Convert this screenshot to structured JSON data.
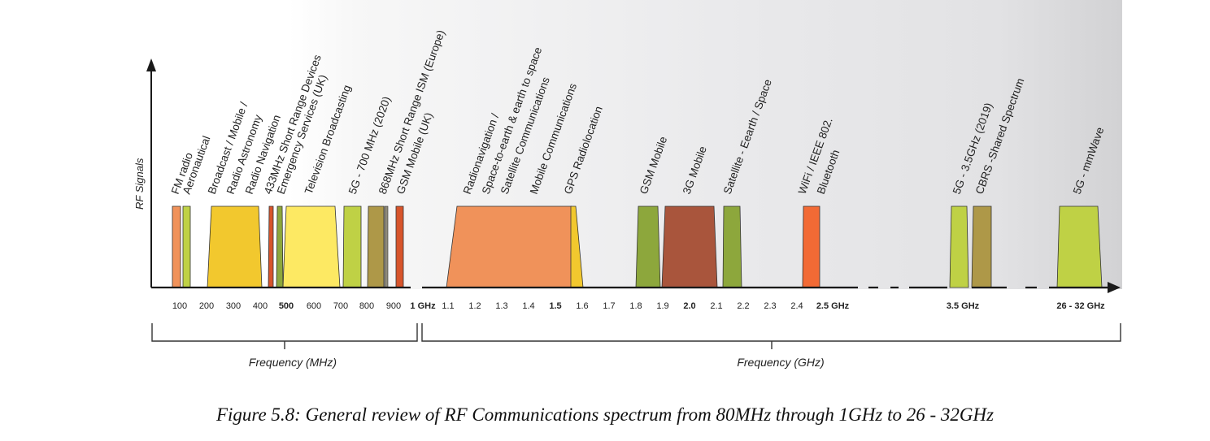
{
  "y_axis_label": "RF Signals",
  "colors": {
    "light_orange": "#F0925A",
    "yellow_green": "#BFD145",
    "gold": "#F2C82E",
    "orange_red": "#D7542B",
    "olive_green": "#8DA73C",
    "bright_yellow": "#FDE963",
    "khaki": "#AE9848",
    "brown": "#A9553C",
    "bright_orange": "#F26A35",
    "axis": "#1a1a1a"
  },
  "bands": [
    {
      "label": "FM radio",
      "color": "light_orange"
    },
    {
      "label": "Aeronautical",
      "color": "yellow_green"
    },
    {
      "label": "Broadcast / Mobile /",
      "color": "gold"
    },
    {
      "label": "Radio Astronomy",
      "color": null
    },
    {
      "label": "Radio Navigation",
      "color": "orange_red"
    },
    {
      "label": "433MHz Short Range Devices",
      "color": "olive_green"
    },
    {
      "label": "Emergency Services (UK)",
      "color": null
    },
    {
      "label": "Television Broadcasting",
      "color": "bright_yellow"
    },
    {
      "label": "5G - 700 MHz (2020)",
      "color": "yellow_green"
    },
    {
      "label": "868MHz Short Range ISM (Europe)",
      "color": "khaki"
    },
    {
      "label": "GSM Mobile (UK)",
      "color": "orange_red"
    },
    {
      "label": "Radionavigation /",
      "color": "light_orange"
    },
    {
      "label": "Space-to-earth & earth to space",
      "color": null
    },
    {
      "label": "Satellite Communications",
      "color": null
    },
    {
      "label": "Mobile Communications",
      "color": null
    },
    {
      "label": "GPS Radiolocation",
      "color": "gold"
    },
    {
      "label": "GSM Mobile",
      "color": "olive_green"
    },
    {
      "label": "3G Mobile",
      "color": "brown"
    },
    {
      "label": "Satellite - Eearth / Space",
      "color": "olive_green"
    },
    {
      "label": "WiFi / IEEE 802.",
      "color": "bright_orange"
    },
    {
      "label": "Bluetooth",
      "color": null
    },
    {
      "label": "5G - 3.5GHz (2019)",
      "color": "yellow_green"
    },
    {
      "label": "CBRS  -Shared Spectrum",
      "color": "khaki"
    },
    {
      "label": "5G - mmWave",
      "color": "yellow_green"
    }
  ],
  "ticks": [
    {
      "text": "100",
      "bold": false
    },
    {
      "text": "200",
      "bold": false
    },
    {
      "text": "300",
      "bold": false
    },
    {
      "text": "400",
      "bold": false
    },
    {
      "text": "500",
      "bold": true
    },
    {
      "text": "600",
      "bold": false
    },
    {
      "text": "700",
      "bold": false
    },
    {
      "text": "800",
      "bold": false
    },
    {
      "text": "900",
      "bold": false
    },
    {
      "text": "1 GHz",
      "bold": true
    },
    {
      "text": "1.1",
      "bold": false
    },
    {
      "text": "1.2",
      "bold": false
    },
    {
      "text": "1.3",
      "bold": false
    },
    {
      "text": "1.4",
      "bold": false
    },
    {
      "text": "1.5",
      "bold": true
    },
    {
      "text": "1.6",
      "bold": false
    },
    {
      "text": "1.7",
      "bold": false
    },
    {
      "text": "1.8",
      "bold": false
    },
    {
      "text": "1.9",
      "bold": false
    },
    {
      "text": "2.0",
      "bold": true
    },
    {
      "text": "2.1",
      "bold": false
    },
    {
      "text": "2.2",
      "bold": false
    },
    {
      "text": "2.3",
      "bold": false
    },
    {
      "text": "2.4",
      "bold": false
    },
    {
      "text": "2.5 GHz",
      "bold": true
    },
    {
      "text": "3.5 GHz",
      "bold": true
    },
    {
      "text": "26 - 32 GHz",
      "bold": true
    }
  ],
  "range_labels": {
    "mhz": "Frequency (MHz)",
    "ghz": "Frequency (GHz)"
  },
  "caption": "Figure 5.8:  General review of RF Communications spectrum from 80MHz through 1GHz to 26 - 32GHz"
}
